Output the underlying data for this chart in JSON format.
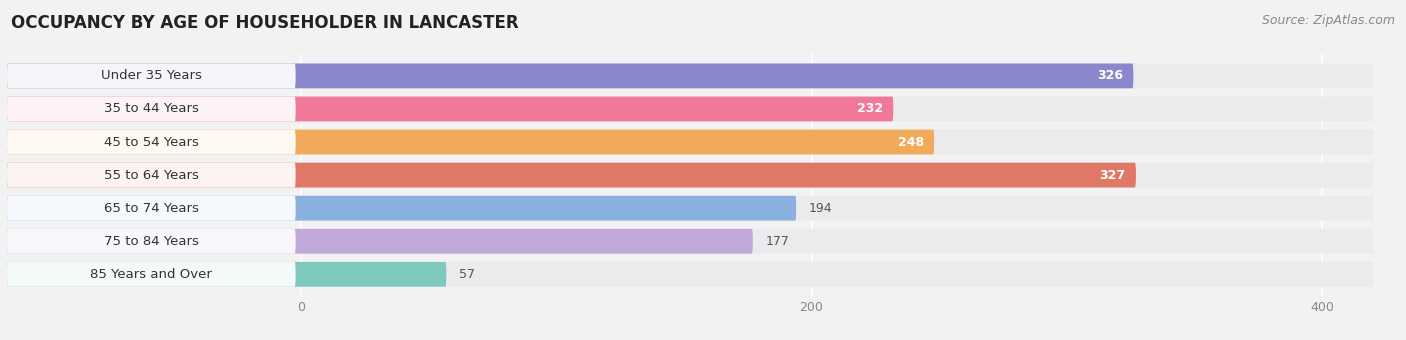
{
  "title": "OCCUPANCY BY AGE OF HOUSEHOLDER IN LANCASTER",
  "source": "Source: ZipAtlas.com",
  "categories": [
    "Under 35 Years",
    "35 to 44 Years",
    "45 to 54 Years",
    "55 to 64 Years",
    "65 to 74 Years",
    "75 to 84 Years",
    "85 Years and Over"
  ],
  "values": [
    326,
    232,
    248,
    327,
    194,
    177,
    57
  ],
  "bar_colors": [
    "#8b87cc",
    "#f07898",
    "#f0aa5a",
    "#e07868",
    "#8ab0e0",
    "#c0a8d8",
    "#7ec8c0"
  ],
  "label_colors": [
    "white",
    "white",
    "white",
    "white",
    "black",
    "black",
    "black"
  ],
  "xlim_left": -115,
  "xlim_right": 430,
  "xticks": [
    0,
    200,
    400
  ],
  "background_color": "#f2f2f2",
  "bar_bg_color": "#e4e4e8",
  "row_bg_color": "#ebebee",
  "title_fontsize": 12,
  "source_fontsize": 9,
  "label_fontsize": 9.5,
  "value_fontsize": 9
}
